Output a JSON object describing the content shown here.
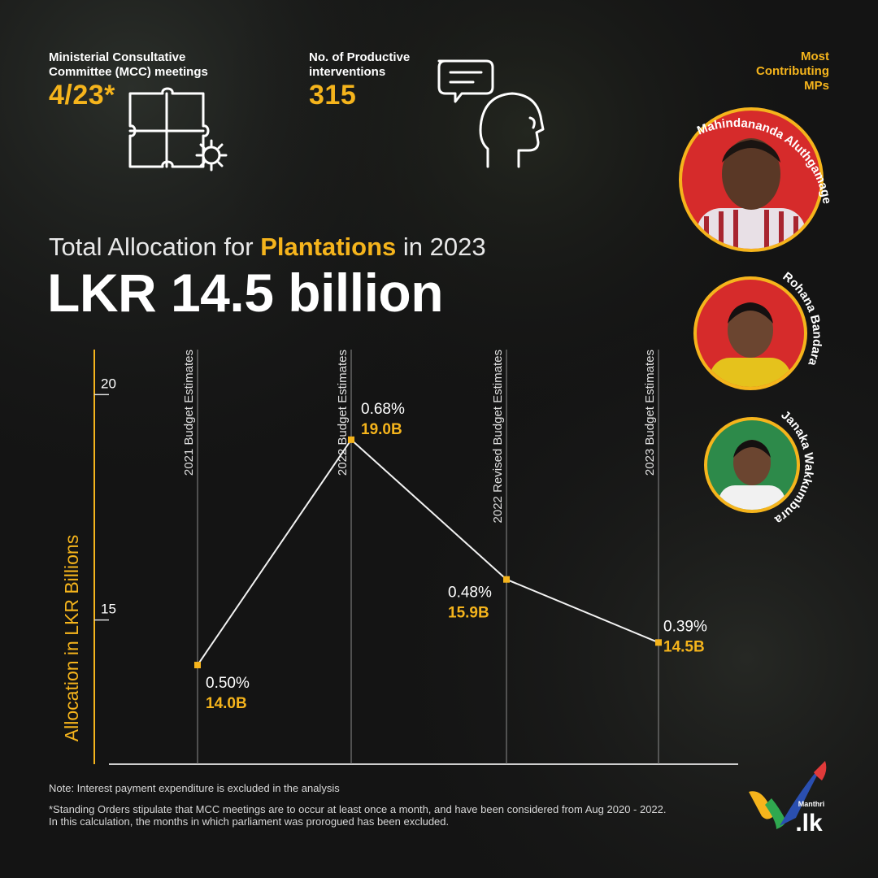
{
  "stats": {
    "mcc": {
      "label_line1": "Ministerial Consultative",
      "label_line2": "Committee (MCC) meetings",
      "value": "4/23*"
    },
    "interventions": {
      "label_line1": "No. of Productive",
      "label_line2": "interventions",
      "value": "315"
    }
  },
  "mps": {
    "heading_line1": "Most",
    "heading_line2": "Contributing",
    "heading_line3": "MPs",
    "list": [
      {
        "name": "Mahindananda Aluthgamage",
        "bg_color": "#d62b2b"
      },
      {
        "name": "Rohana Bandara",
        "bg_color": "#d62b2b"
      },
      {
        "name": "Janaka Wakkumbura",
        "bg_color": "#2d8a4a"
      }
    ]
  },
  "allocation": {
    "title_pre": "Total Allocation for ",
    "title_highlight": "Plantations",
    "title_post": " in 2023",
    "amount": "LKR 14.5 billion"
  },
  "chart_data": {
    "type": "line",
    "ylabel": "Allocation in LKR Billions",
    "ylim": [
      11.8,
      21
    ],
    "yticks": [
      15,
      20
    ],
    "categories": [
      "2021 Budget Estimates",
      "2022 Budget Estimates",
      "2022 Revised Budget Estimates",
      "2023 Budget Estimates"
    ],
    "series": [
      {
        "values": [
          14.0,
          19.0,
          15.9,
          14.5
        ],
        "value_labels": [
          "14.0B",
          "19.0B",
          "15.9B",
          "14.5B"
        ],
        "percent_labels": [
          "0.50%",
          "0.68%",
          "0.48%",
          "0.39%"
        ]
      }
    ],
    "grid": false
  },
  "notes": {
    "note1": "Note: Interest payment expenditure is excluded in the analysis",
    "note2_line1": "*Standing Orders stipulate that MCC meetings are to occur at least once a month, and have been considered from Aug 2020 - 2022.",
    "note2_line2": "In this calculation, the months in which parliament was prorogued has been excluded."
  },
  "logo": {
    "top": "Manthri",
    "bottom": ".lk"
  },
  "colors": {
    "accent": "#f5b41c",
    "background": "#141414",
    "text": "#ffffff"
  },
  "icons": [
    "puzzle-gear-icon",
    "head-speech-bubble-icon"
  ]
}
